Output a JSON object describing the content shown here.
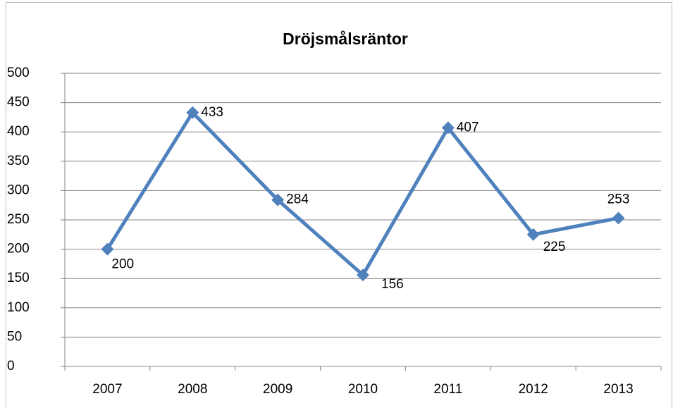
{
  "chart_data": {
    "type": "line",
    "title": "Dröjsmålsräntor",
    "categories": [
      "2007",
      "2008",
      "2009",
      "2010",
      "2011",
      "2012",
      "2013"
    ],
    "series": [
      {
        "name": "Dröjsmålsräntor",
        "color": "#4f81bd",
        "values": [
          200,
          433,
          284,
          156,
          407,
          225,
          253
        ]
      }
    ],
    "ylim": [
      0,
      500
    ],
    "yticks": [
      0,
      50,
      100,
      150,
      200,
      250,
      300,
      350,
      400,
      450,
      500
    ],
    "grid": true
  }
}
